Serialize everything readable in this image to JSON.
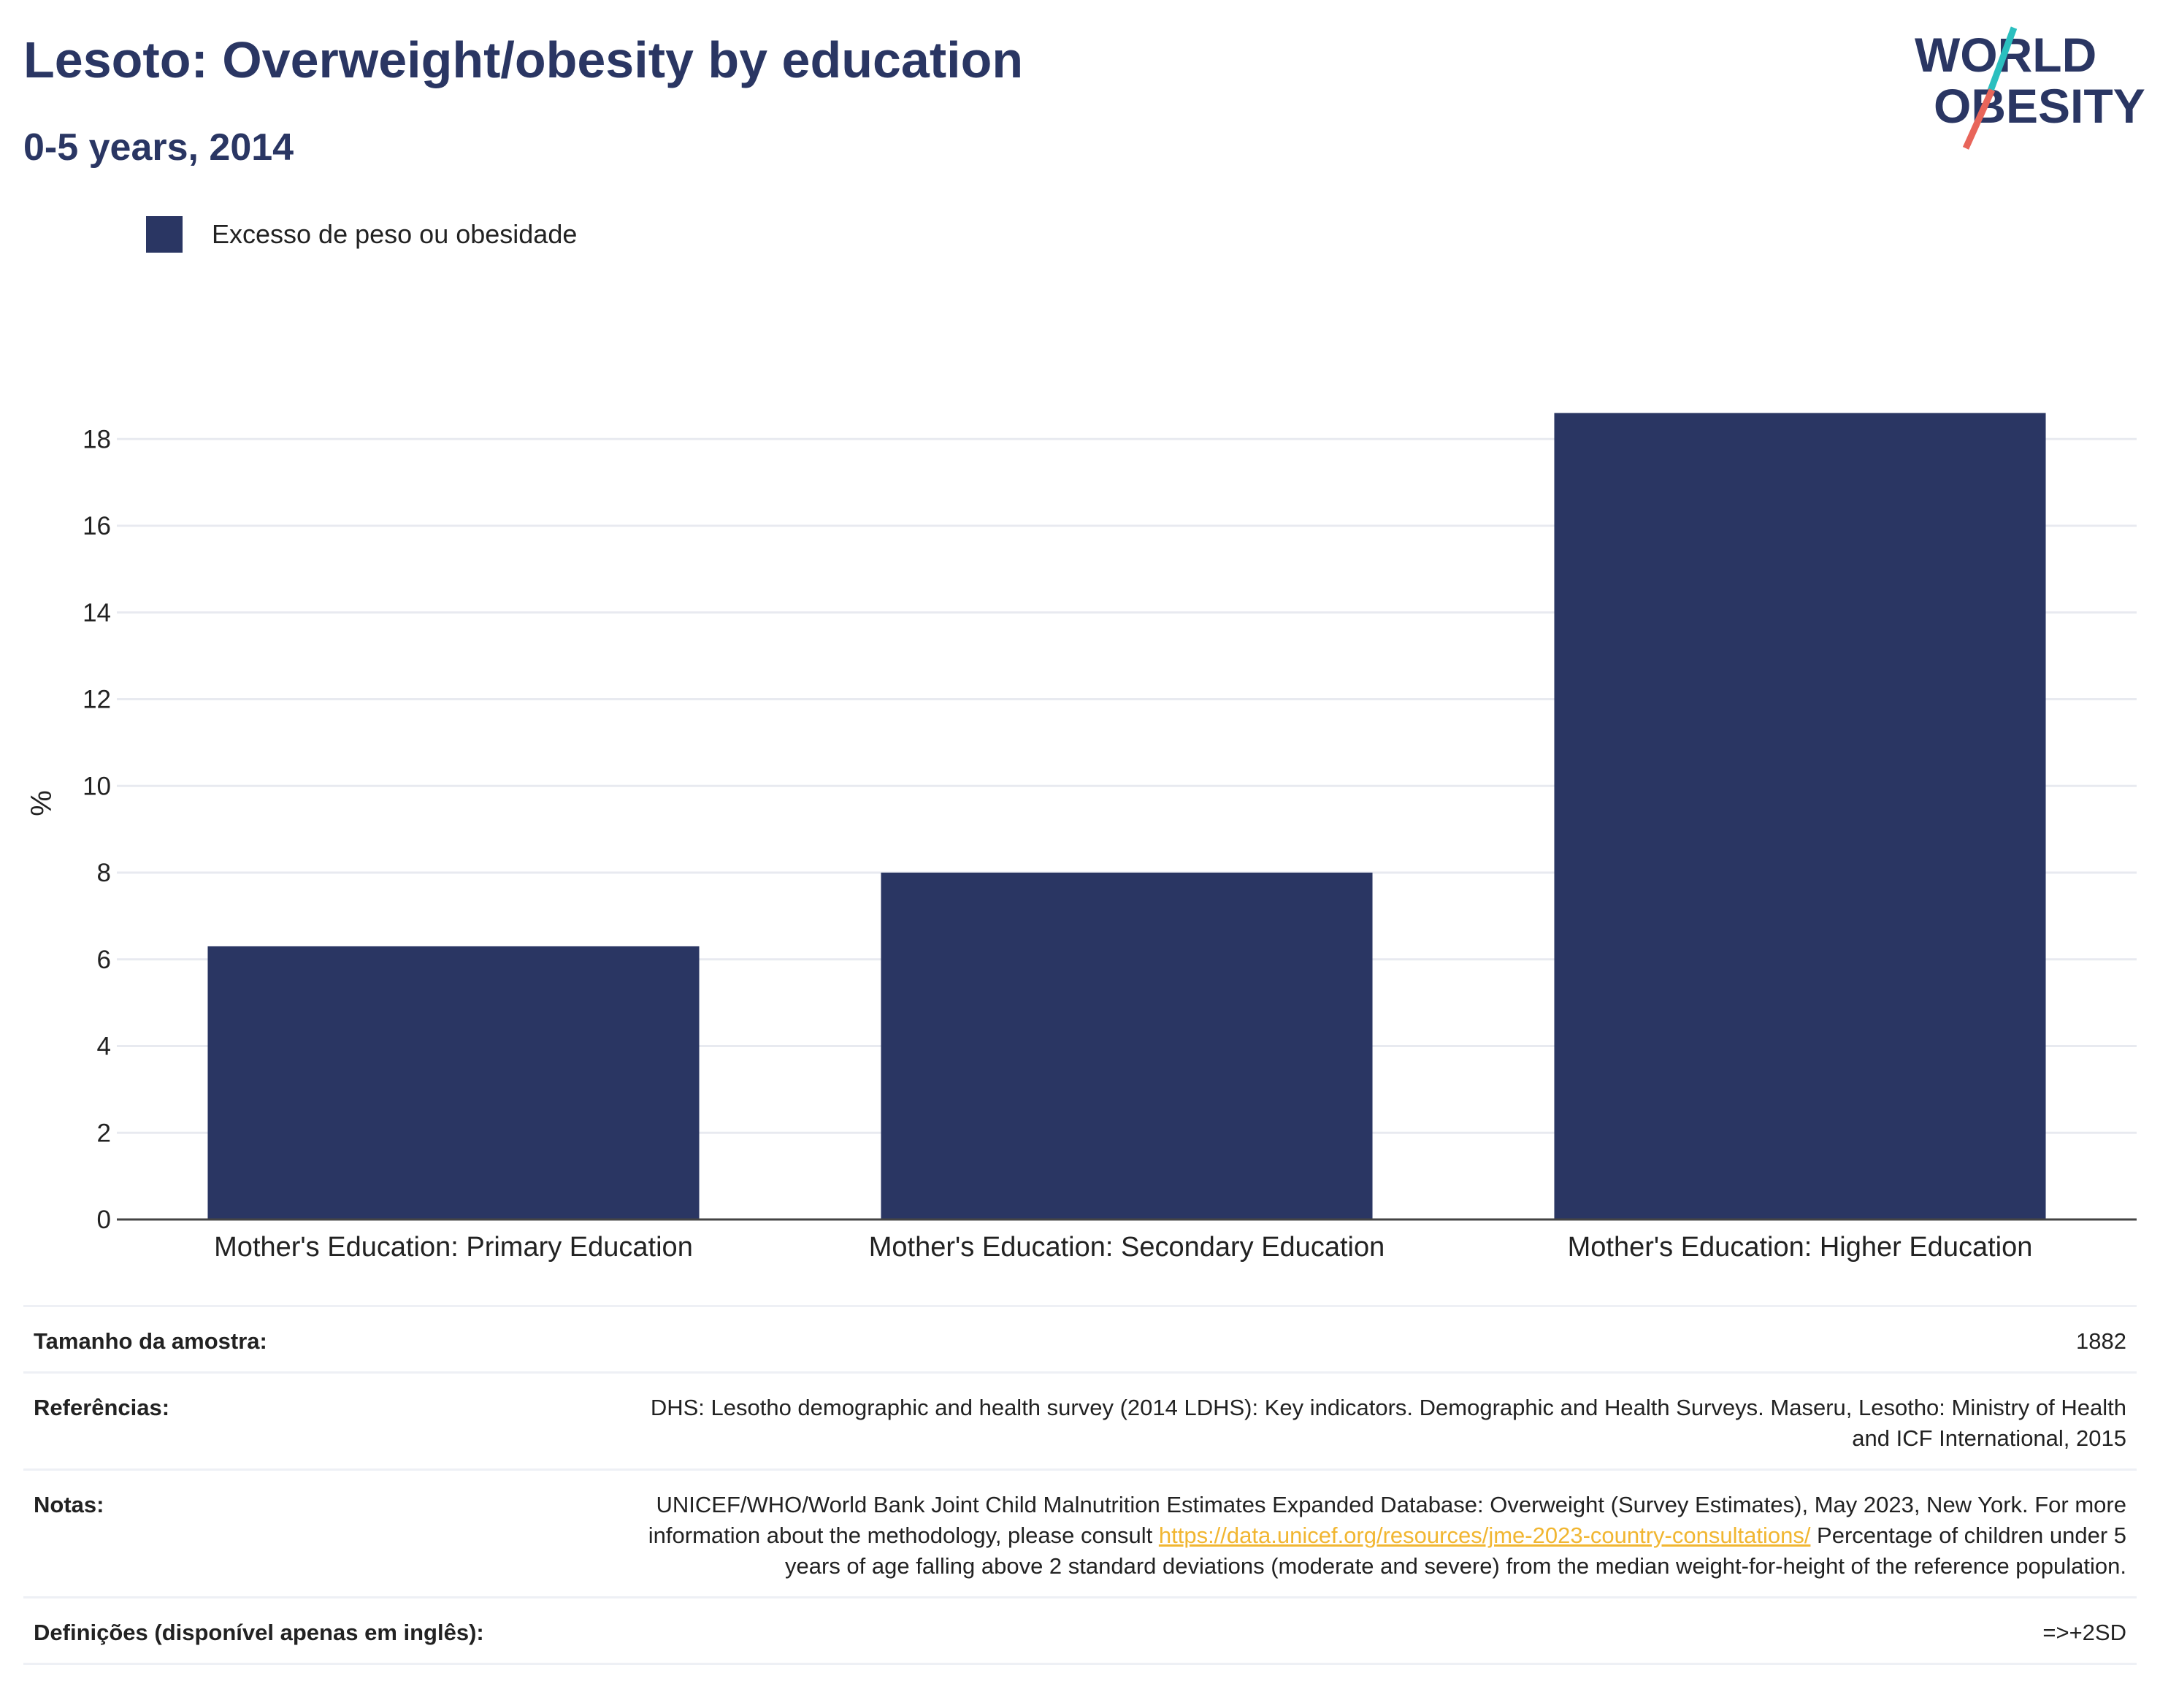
{
  "header": {
    "title": "Lesoto: Overweight/obesity by education",
    "subtitle": "0-5 years, 2014"
  },
  "logo": {
    "line1": "WORLD",
    "line2": "OBESITY"
  },
  "colors": {
    "bar": "#2a3663",
    "text_dark": "#2a3663",
    "link": "#f1b631",
    "logo_teal": "#2bbfbf",
    "logo_coral": "#e8655a"
  },
  "chart_data": {
    "type": "bar",
    "categories": [
      "Mother's Education: Primary Education",
      "Mother's Education: Secondary Education",
      "Mother's Education: Higher Education"
    ],
    "series": [
      {
        "name": "Excesso de peso ou obesidade",
        "values": [
          6.3,
          8.0,
          18.6
        ]
      }
    ],
    "ylabel": "%",
    "ylim": [
      0,
      19.2
    ],
    "yticks": [
      0,
      2,
      4,
      6,
      8,
      10,
      12,
      14,
      16,
      18
    ],
    "grid": true,
    "legend": "top-left"
  },
  "info": {
    "sample_label": "Tamanho da amostra:",
    "sample_value": "1882",
    "refs_label": "Referências:",
    "refs_value": "DHS: Lesotho demographic and health survey (2014 LDHS): Key indicators. Demographic and Health Surveys. Maseru, Lesotho: Ministry of Health and ICF International, 2015",
    "notes_label": "Notas:",
    "notes_text1": "UNICEF/WHO/World Bank Joint Child Malnutrition Estimates Expanded Database: Overweight (Survey Estimates), May 2023, New York. For more information about the methodology, please consult ",
    "notes_link": "https://data.unicef.org/resources/jme-2023-country-consultations/",
    "notes_text2": " Percentage of children under 5 years of age falling above 2 standard deviations (moderate and severe) from the median weight-for-height of the reference population.",
    "defs_label": "Definições (disponível apenas em inglês):",
    "defs_value": "=>+2SD"
  }
}
